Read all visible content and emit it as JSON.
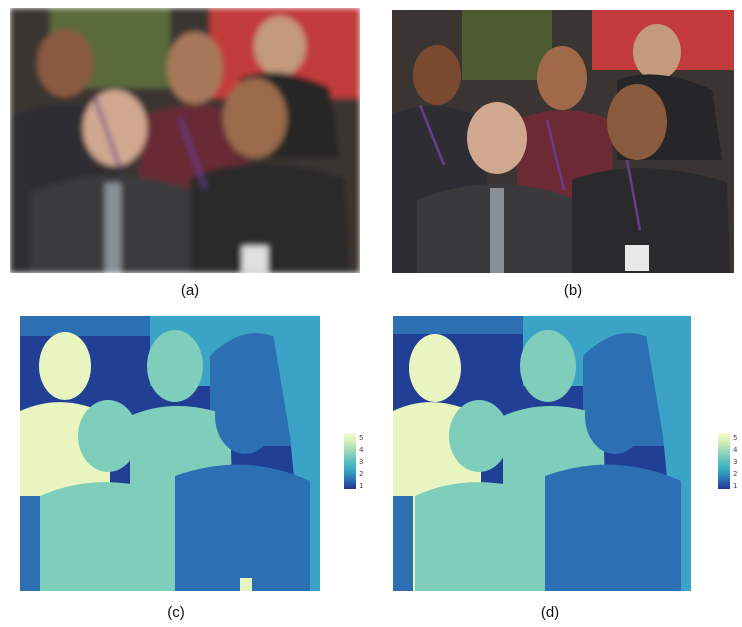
{
  "figure": {
    "panels": [
      {
        "id": "a",
        "caption": "(a)",
        "kind": "photo",
        "variant": "blurred"
      },
      {
        "id": "b",
        "caption": "(b)",
        "kind": "photo",
        "variant": "sharp"
      },
      {
        "id": "c",
        "caption": "(c)",
        "kind": "depth-map",
        "variant": "noisy"
      },
      {
        "id": "d",
        "caption": "(d)",
        "kind": "depth-map",
        "variant": "clean"
      }
    ],
    "colorbar": {
      "ticks": [
        "5",
        "4",
        "3",
        "2",
        "1"
      ],
      "colors": [
        "#f7fcd0",
        "#c7e9b4",
        "#7fcdbb",
        "#41b6c4",
        "#2c7fb8",
        "#253494"
      ]
    },
    "palette": {
      "suit_dark": "#2b2a2c",
      "suit_gray": "#3a3a3d",
      "shirt_red": "#7a2b34",
      "skin": "#b07a5b",
      "background_red": "#c23a3a",
      "lanyard": "#6b3c8e",
      "depth_1": "#223f96",
      "depth_2": "#2c6fb2",
      "depth_3": "#3aa3c6",
      "depth_4": "#7fcdbb",
      "depth_5": "#e8f5c0"
    }
  }
}
